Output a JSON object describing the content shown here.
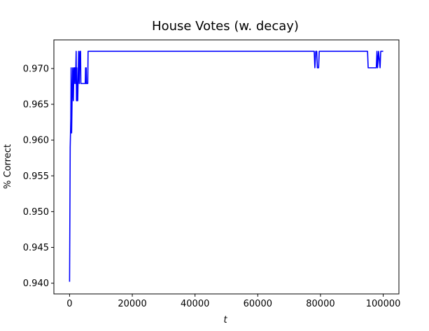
{
  "chart_data": {
    "type": "line",
    "title": "House Votes (w. decay)",
    "xlabel": "t",
    "ylabel": "% Correct",
    "xlim": [
      -5000,
      105000
    ],
    "ylim": [
      0.9385,
      0.974
    ],
    "xticks": [
      0,
      20000,
      40000,
      60000,
      80000,
      100000
    ],
    "xtick_labels": [
      "0",
      "20000",
      "40000",
      "60000",
      "80000",
      "100000"
    ],
    "yticks": [
      0.94,
      0.945,
      0.95,
      0.955,
      0.96,
      0.965,
      0.97
    ],
    "ytick_labels": [
      "0.940",
      "0.945",
      "0.950",
      "0.955",
      "0.960",
      "0.965",
      "0.970"
    ],
    "grid": false,
    "legend": false,
    "series": [
      {
        "color": "#0000ff",
        "x": [
          0,
          200,
          400,
          500,
          650,
          800,
          900,
          1000,
          1100,
          1200,
          1300,
          1400,
          1500,
          1600,
          1700,
          1800,
          1900,
          2000,
          2100,
          2200,
          2300,
          2400,
          2500,
          2600,
          2700,
          2800,
          2900,
          3000,
          3100,
          3200,
          3300,
          3400,
          3500,
          3600,
          3700,
          3800,
          3900,
          4000,
          4200,
          4400,
          4600,
          4800,
          5000,
          5100,
          5200,
          5300,
          5400,
          5500,
          5600,
          5800,
          5900,
          6000,
          6200,
          7000,
          10000,
          20000,
          40000,
          60000,
          77500,
          78000,
          78200,
          78500,
          78800,
          79000,
          79200,
          79400,
          79600,
          80000,
          90000,
          95000,
          95200,
          95500,
          96000,
          96500,
          97000,
          97500,
          97800,
          98000,
          98200,
          98500,
          99000,
          99200,
          99500,
          100000
        ],
        "y": [
          0.9402,
          0.959,
          0.963,
          0.9701,
          0.961,
          0.9655,
          0.9679,
          0.9701,
          0.9679,
          0.9655,
          0.9679,
          0.9701,
          0.9679,
          0.9701,
          0.969,
          0.9701,
          0.9679,
          0.9701,
          0.9724,
          0.9655,
          0.9701,
          0.9655,
          0.9679,
          0.9655,
          0.9679,
          0.9701,
          0.9724,
          0.9701,
          0.9679,
          0.9701,
          0.9724,
          0.9701,
          0.9724,
          0.9679,
          0.9679,
          0.9679,
          0.9679,
          0.9679,
          0.9679,
          0.9679,
          0.9679,
          0.9679,
          0.9679,
          0.9701,
          0.9679,
          0.9701,
          0.9679,
          0.9679,
          0.9679,
          0.9679,
          0.9724,
          0.9724,
          0.9724,
          0.9724,
          0.9724,
          0.9724,
          0.9724,
          0.9724,
          0.9724,
          0.9724,
          0.9701,
          0.9724,
          0.9724,
          0.9701,
          0.9701,
          0.9701,
          0.9724,
          0.9724,
          0.9724,
          0.9724,
          0.9701,
          0.9701,
          0.9701,
          0.9701,
          0.9701,
          0.9701,
          0.9701,
          0.9724,
          0.9701,
          0.9724,
          0.9701,
          0.9724,
          0.9724,
          0.9724
        ]
      }
    ]
  }
}
